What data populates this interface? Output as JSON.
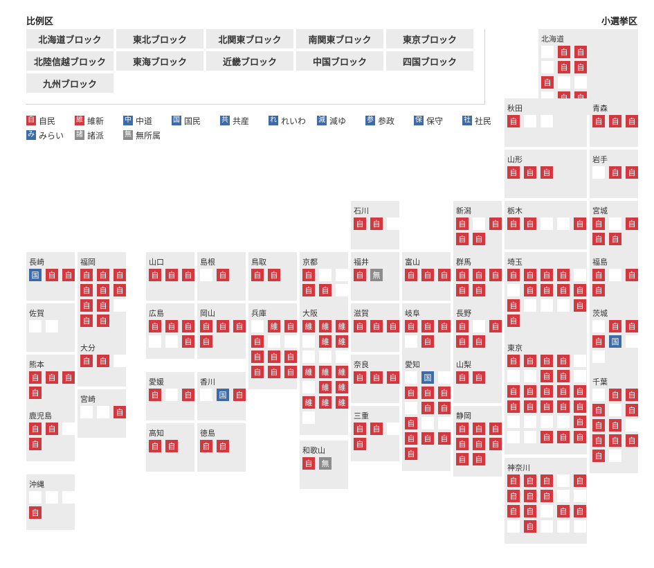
{
  "labels": {
    "proportional": "比例区",
    "single": "小選挙区"
  },
  "blocks": [
    "北海道ブロック",
    "東北ブロック",
    "北関東ブロック",
    "南関東ブロック",
    "東京ブロック",
    "北陸信越ブロック",
    "東海ブロック",
    "近畿ブロック",
    "中国ブロック",
    "四国ブロック",
    "九州ブロック"
  ],
  "legend": [
    {
      "code": "自",
      "label": "自民",
      "color": "#d2383f"
    },
    {
      "code": "維",
      "label": "維新",
      "color": "#d2383f"
    },
    {
      "code": "中",
      "label": "中道",
      "color": "#3d6ba8"
    },
    {
      "code": "国",
      "label": "国民",
      "color": "#3d6ba8"
    },
    {
      "code": "共",
      "label": "共産",
      "color": "#3d6ba8"
    },
    {
      "code": "れ",
      "label": "れいわ",
      "color": "#3d6ba8"
    },
    {
      "code": "減",
      "label": "減ゆ",
      "color": "#3d6ba8"
    },
    {
      "code": "参",
      "label": "参政",
      "color": "#3d6ba8"
    },
    {
      "code": "保",
      "label": "保守",
      "color": "#3d6ba8"
    },
    {
      "code": "社",
      "label": "社民",
      "color": "#3d6ba8"
    },
    {
      "code": "み",
      "label": "みらい",
      "color": "#3d6ba8"
    },
    {
      "code": "諸",
      "label": "諸派",
      "color": "#8c8c8c"
    },
    {
      "code": "無",
      "label": "無所属",
      "color": "#8c8c8c"
    }
  ],
  "prefectures": [
    {
      "name": "北海道",
      "seats": [
        "",
        "自",
        "自",
        "",
        "自",
        "自",
        "自",
        "",
        "",
        "",
        "自",
        "自"
      ]
    },
    {
      "name": "秋田",
      "seats": [
        "自",
        "",
        ""
      ]
    },
    {
      "name": "青森",
      "seats": [
        "自",
        "自",
        "自"
      ]
    },
    {
      "name": "山形",
      "seats": [
        "自",
        "自",
        "自"
      ]
    },
    {
      "name": "岩手",
      "seats": [
        "",
        "自",
        "自"
      ]
    },
    {
      "name": "石川",
      "seats": [
        "自",
        "自",
        ""
      ]
    },
    {
      "name": "新潟",
      "seats": [
        "自",
        "",
        "自",
        "自",
        "自"
      ]
    },
    {
      "name": "栃木",
      "seats": [
        "自",
        "自",
        "",
        "",
        "自"
      ]
    },
    {
      "name": "宮城",
      "seats": [
        "自",
        "",
        "自",
        "自",
        "自"
      ]
    },
    {
      "name": "長崎",
      "seats": [
        "国",
        "自",
        "自"
      ]
    },
    {
      "name": "福岡",
      "seats": [
        "自",
        "自",
        "自",
        "自",
        "自",
        "自",
        "自",
        "自",
        "",
        "自",
        "自"
      ]
    },
    {
      "name": "山口",
      "seats": [
        "自",
        "自",
        "自"
      ]
    },
    {
      "name": "島根",
      "seats": [
        "",
        "自"
      ]
    },
    {
      "name": "鳥取",
      "seats": [
        "自",
        "自"
      ]
    },
    {
      "name": "京都",
      "seats": [
        "自",
        "",
        "",
        "自",
        "自",
        ""
      ]
    },
    {
      "name": "福井",
      "seats": [
        "自",
        "無"
      ]
    },
    {
      "name": "富山",
      "seats": [
        "自",
        "自",
        "自"
      ]
    },
    {
      "name": "群馬",
      "seats": [
        "自",
        "自",
        "自",
        "自",
        "自"
      ]
    },
    {
      "name": "埼玉",
      "seats": [
        "自",
        "自",
        "自",
        "自",
        "",
        "",
        "自",
        "自",
        "自",
        "自",
        "自",
        "",
        "",
        "",
        "自",
        "自"
      ]
    },
    {
      "name": "福島",
      "seats": [
        "自",
        "",
        "自",
        "自"
      ]
    },
    {
      "name": "佐賀",
      "seats": [
        "",
        ""
      ]
    },
    {
      "name": "広島",
      "seats": [
        "自",
        "自",
        "自",
        "",
        "",
        "自"
      ]
    },
    {
      "name": "岡山",
      "seats": [
        "自",
        "自",
        "自",
        "自"
      ]
    },
    {
      "name": "兵庫",
      "seats": [
        "",
        "維",
        "自",
        "自",
        "",
        "",
        "自",
        "自",
        "自",
        "自",
        "自",
        "自"
      ]
    },
    {
      "name": "大阪",
      "seats": [
        "維",
        "維",
        "維",
        "",
        "維",
        "維",
        "",
        "",
        "",
        "維",
        "維",
        "維",
        "",
        "維",
        "維",
        "維",
        "維",
        "維",
        ""
      ]
    },
    {
      "name": "滋賀",
      "seats": [
        "自",
        "自",
        "自"
      ]
    },
    {
      "name": "岐阜",
      "seats": [
        "自",
        "自",
        "自",
        "",
        "自"
      ]
    },
    {
      "name": "長野",
      "seats": [
        "自",
        "",
        "自",
        "自",
        "自"
      ]
    },
    {
      "name": "茨城",
      "seats": [
        "",
        "自",
        "自",
        "自",
        "国",
        "",
        ""
      ]
    },
    {
      "name": "大分",
      "seats": [
        "自",
        "自",
        ""
      ]
    },
    {
      "name": "熊本",
      "seats": [
        "自",
        "自",
        "自",
        "自"
      ]
    },
    {
      "name": "愛媛",
      "seats": [
        "自",
        "",
        "自"
      ]
    },
    {
      "name": "香川",
      "seats": [
        "",
        "国",
        "自"
      ]
    },
    {
      "name": "奈良",
      "seats": [
        "自",
        "自",
        "自"
      ]
    },
    {
      "name": "愛知",
      "seats": [
        "",
        "国",
        "",
        "自",
        "自",
        "自",
        "",
        "自",
        "自",
        "自",
        "",
        "",
        "自",
        "自",
        "自",
        "自"
      ]
    },
    {
      "name": "山梨",
      "seats": [
        "自",
        "自"
      ]
    },
    {
      "name": "東京",
      "seats": [
        "自",
        "自",
        "自",
        "自",
        "",
        "",
        "",
        "自",
        "自",
        "",
        "自",
        "自",
        "自",
        "自",
        "自",
        "自",
        "自",
        "自",
        "自",
        "自",
        "",
        "",
        "",
        "",
        "自",
        "",
        "",
        "自",
        "自",
        "自"
      ]
    },
    {
      "name": "千葉",
      "seats": [
        "",
        "自",
        "自",
        "自",
        "",
        "自",
        "自",
        "自",
        "",
        "自",
        "自",
        "自",
        "自",
        ""
      ]
    },
    {
      "name": "宮崎",
      "seats": [
        "",
        "",
        "自"
      ]
    },
    {
      "name": "鹿児島",
      "seats": [
        "自",
        "自",
        "",
        "自"
      ]
    },
    {
      "name": "三重",
      "seats": [
        "自",
        "自",
        "",
        "自"
      ]
    },
    {
      "name": "静岡",
      "seats": [
        "自",
        "自",
        "自",
        "自",
        "自",
        "自",
        "自",
        "自"
      ]
    },
    {
      "name": "高知",
      "seats": [
        "自",
        "自"
      ]
    },
    {
      "name": "徳島",
      "seats": [
        "自",
        "自"
      ]
    },
    {
      "name": "和歌山",
      "seats": [
        "自",
        "無"
      ]
    },
    {
      "name": "神奈川",
      "seats": [
        "自",
        "自",
        "自",
        "",
        "自",
        "自",
        "自",
        "自",
        "",
        "",
        "自",
        "自",
        "",
        "自",
        "自",
        "",
        "自",
        "",
        "",
        ""
      ]
    },
    {
      "name": "沖縄",
      "seats": [
        "",
        "",
        "",
        "自"
      ]
    }
  ]
}
